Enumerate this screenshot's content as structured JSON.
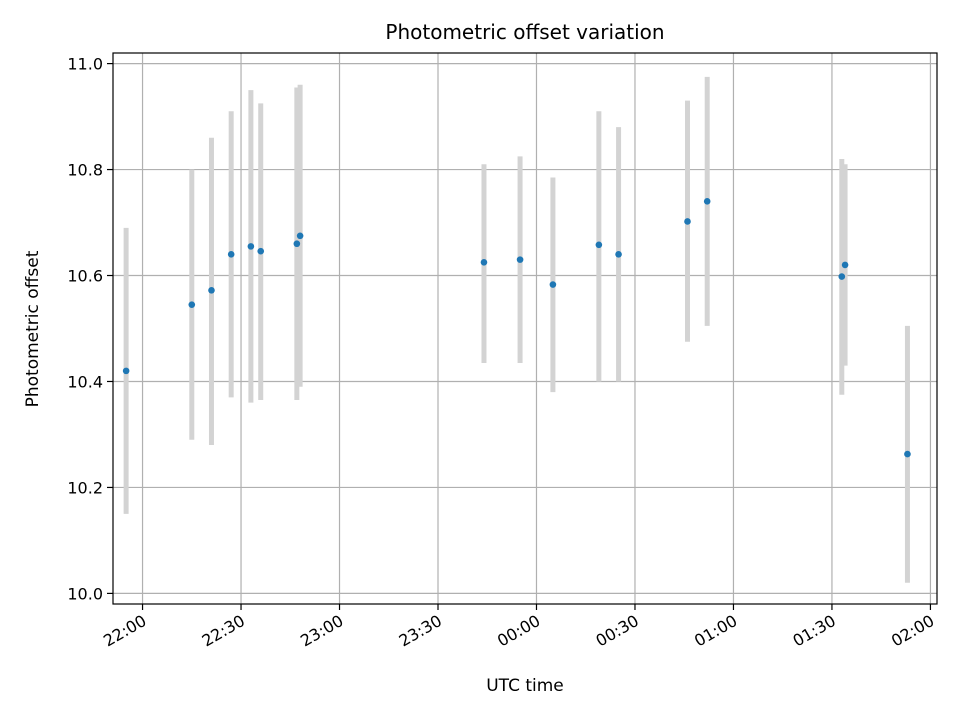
{
  "chart_data": {
    "type": "scatter",
    "title": "Photometric offset variation",
    "xlabel": "UTC time",
    "ylabel": "Photometric offset",
    "x_axis": "time",
    "xlim": [
      "21:51",
      "02:02"
    ],
    "ylim": [
      9.98,
      11.02
    ],
    "grid": true,
    "x_ticks": [
      "22:00",
      "22:30",
      "23:00",
      "23:30",
      "00:00",
      "00:30",
      "01:00",
      "01:30",
      "02:00"
    ],
    "y_ticks": [
      "10.0",
      "10.2",
      "10.4",
      "10.6",
      "10.8",
      "11.0"
    ],
    "colors": {
      "point": "#1f77b4",
      "errorbar": "#d3d3d3",
      "grid": "#b0b0b0"
    },
    "points": [
      {
        "x": "21:55",
        "y": 10.42,
        "ylow": 10.15,
        "yhigh": 10.69
      },
      {
        "x": "22:15",
        "y": 10.545,
        "ylow": 10.29,
        "yhigh": 10.8
      },
      {
        "x": "22:21",
        "y": 10.572,
        "ylow": 10.28,
        "yhigh": 10.86
      },
      {
        "x": "22:27",
        "y": 10.64,
        "ylow": 10.37,
        "yhigh": 10.91
      },
      {
        "x": "22:33",
        "y": 10.655,
        "ylow": 10.36,
        "yhigh": 10.95
      },
      {
        "x": "22:36",
        "y": 10.646,
        "ylow": 10.365,
        "yhigh": 10.925
      },
      {
        "x": "22:47",
        "y": 10.66,
        "ylow": 10.365,
        "yhigh": 10.955
      },
      {
        "x": "22:48",
        "y": 10.675,
        "ylow": 10.39,
        "yhigh": 10.96
      },
      {
        "x": "23:44",
        "y": 10.625,
        "ylow": 10.435,
        "yhigh": 10.81
      },
      {
        "x": "23:55",
        "y": 10.63,
        "ylow": 10.435,
        "yhigh": 10.825
      },
      {
        "x": "00:05",
        "y": 10.583,
        "ylow": 10.38,
        "yhigh": 10.785
      },
      {
        "x": "00:19",
        "y": 10.658,
        "ylow": 10.4,
        "yhigh": 10.91
      },
      {
        "x": "00:25",
        "y": 10.64,
        "ylow": 10.4,
        "yhigh": 10.88
      },
      {
        "x": "00:46",
        "y": 10.702,
        "ylow": 10.475,
        "yhigh": 10.93
      },
      {
        "x": "00:52",
        "y": 10.74,
        "ylow": 10.505,
        "yhigh": 10.975
      },
      {
        "x": "01:33",
        "y": 10.598,
        "ylow": 10.375,
        "yhigh": 10.82
      },
      {
        "x": "01:34",
        "y": 10.62,
        "ylow": 10.43,
        "yhigh": 10.81
      },
      {
        "x": "01:53",
        "y": 10.263,
        "ylow": 10.02,
        "yhigh": 10.505
      }
    ]
  }
}
